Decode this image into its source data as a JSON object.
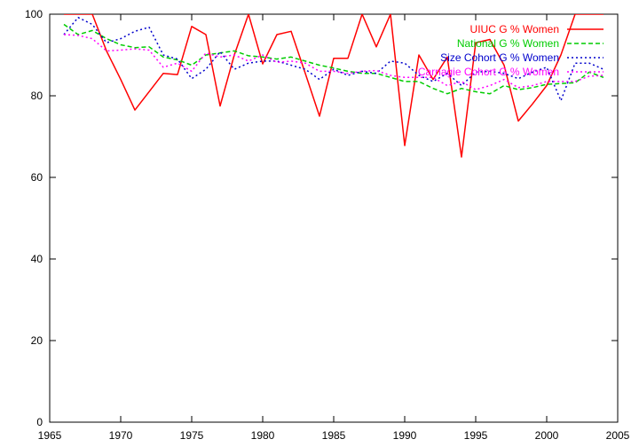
{
  "chart_data": {
    "type": "line",
    "title": "",
    "xlabel": "",
    "ylabel": "",
    "xlim": [
      1965,
      2005
    ],
    "ylim": [
      0,
      100
    ],
    "xticks": [
      1965,
      1970,
      1975,
      1980,
      1985,
      1990,
      1995,
      2000,
      2005
    ],
    "yticks": [
      0,
      20,
      40,
      60,
      80,
      100
    ],
    "grid": false,
    "legend_position": "top-right",
    "series": [
      {
        "name": "UIUC G % Women",
        "color": "#ff0000",
        "dash": "solid",
        "x": [
          1966,
          1967,
          1968,
          1969,
          1970,
          1971,
          1972,
          1973,
          1974,
          1975,
          1976,
          1977,
          1978,
          1979,
          1980,
          1981,
          1982,
          1983,
          1984,
          1985,
          1986,
          1987,
          1988,
          1989,
          1990,
          1991,
          1992,
          1993,
          1994,
          1995,
          1996,
          1997,
          1998,
          1999,
          2000,
          2001,
          2002,
          2003,
          2004
        ],
        "y": [
          100,
          100,
          100,
          91,
          84,
          76.5,
          81,
          85.5,
          85.2,
          97,
          95,
          77.5,
          90,
          100,
          87.8,
          95,
          95.8,
          85.5,
          75,
          89.2,
          89.2,
          100,
          92,
          100,
          67.8,
          90,
          84,
          89.5,
          65,
          93,
          93.8,
          87.5,
          73.8,
          78,
          82.5,
          90,
          100,
          100,
          100
        ]
      },
      {
        "name": "National G % Women",
        "color": "#00cc00",
        "dash": "dashed",
        "x": [
          1966,
          1967,
          1968,
          1969,
          1970,
          1971,
          1972,
          1973,
          1974,
          1975,
          1976,
          1977,
          1978,
          1979,
          1980,
          1981,
          1982,
          1983,
          1984,
          1985,
          1986,
          1987,
          1988,
          1989,
          1990,
          1991,
          1992,
          1993,
          1994,
          1995,
          1996,
          1997,
          1998,
          1999,
          2000,
          2001,
          2002,
          2003,
          2004
        ],
        "y": [
          97.5,
          95,
          96,
          94,
          92.5,
          91.8,
          92,
          89.5,
          88.8,
          87.5,
          90,
          90.5,
          91,
          89.8,
          89.5,
          89,
          89.5,
          88.5,
          87.5,
          86.8,
          86,
          85.5,
          85.5,
          84.5,
          83.5,
          83.5,
          81.8,
          80.5,
          81.8,
          81,
          80.5,
          82.5,
          81.5,
          82,
          82.8,
          83,
          83.2,
          85.8,
          84.5
        ]
      },
      {
        "name": "Size Cohort G % Women",
        "color": "#0000cc",
        "dash": "dotted",
        "x": [
          1966,
          1967,
          1968,
          1969,
          1970,
          1971,
          1972,
          1973,
          1974,
          1975,
          1976,
          1977,
          1978,
          1979,
          1980,
          1981,
          1982,
          1983,
          1984,
          1985,
          1986,
          1987,
          1988,
          1989,
          1990,
          1991,
          1992,
          1993,
          1994,
          1995,
          1996,
          1997,
          1998,
          1999,
          2000,
          2001,
          2002,
          2003,
          2004
        ],
        "y": [
          95,
          99.2,
          97.5,
          93,
          94,
          95.8,
          96.8,
          90,
          89,
          84.2,
          86.5,
          90.8,
          86.5,
          88,
          88.5,
          88.5,
          87.5,
          86.5,
          84,
          86.5,
          85,
          86,
          85.5,
          88.5,
          88,
          85,
          83.5,
          85.5,
          82.5,
          85.8,
          86,
          85.5,
          84.2,
          85.8,
          87,
          78.8,
          88,
          88,
          86.5
        ]
      },
      {
        "name": "Carnagie Cohort G % Women",
        "color": "#ff00ff",
        "dash": "dotted",
        "x": [
          1966,
          1967,
          1968,
          1969,
          1970,
          1971,
          1972,
          1973,
          1974,
          1975,
          1976,
          1977,
          1978,
          1979,
          1980,
          1981,
          1982,
          1983,
          1984,
          1985,
          1986,
          1987,
          1988,
          1989,
          1990,
          1991,
          1992,
          1993,
          1994,
          1995,
          1996,
          1997,
          1998,
          1999,
          2000,
          2001,
          2002,
          2003,
          2004
        ],
        "y": [
          95,
          94.8,
          94,
          91,
          91.2,
          91.5,
          91.2,
          87,
          88,
          86,
          90.5,
          89.5,
          90,
          88.5,
          90,
          88.2,
          88.5,
          88,
          86,
          86,
          85.5,
          86,
          86.2,
          85,
          84.5,
          84.5,
          84.5,
          82.5,
          83.5,
          81.5,
          82.5,
          84,
          82,
          82.5,
          83.5,
          83.5,
          83.5,
          84.8,
          85
        ]
      }
    ]
  }
}
